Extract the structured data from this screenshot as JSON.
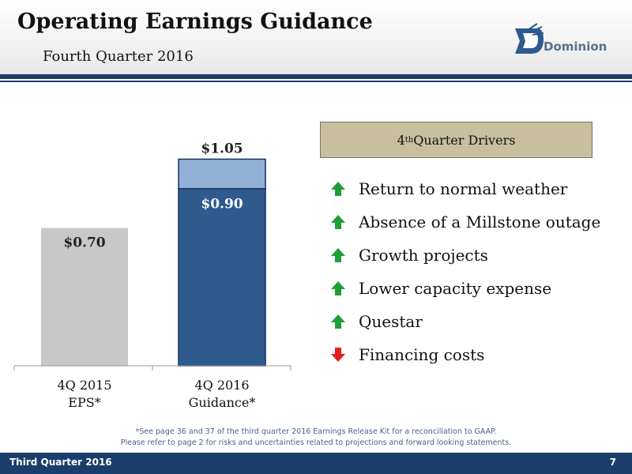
{
  "header": {
    "title": "Operating Earnings Guidance",
    "subtitle": "Fourth Quarter 2016",
    "logo_text": "Dominion"
  },
  "colors": {
    "navy": "#1b3d6b",
    "bar_gray": "#c8c8c8",
    "bar_blue": "#2f5a8e",
    "bar_light_blue": "#92b0d8",
    "box_tan": "#c7bf9f",
    "arrow_up": "#1e9e3a",
    "arrow_down": "#e02020"
  },
  "chart_data": {
    "type": "bar",
    "categories": [
      [
        "4Q 2015",
        "EPS*"
      ],
      [
        "4Q 2016",
        "Guidance*"
      ]
    ],
    "series": [
      {
        "values": [
          0.7,
          0.9
        ]
      },
      {
        "values": [
          0,
          0.15
        ]
      }
    ],
    "data_labels": [
      "$0.70",
      "$0.90",
      "$1.05"
    ],
    "ylim": [
      0,
      1.1
    ],
    "grid": false
  },
  "drivers": {
    "heading_prefix": "4",
    "heading_sup": "th",
    "heading_rest": " Quarter Drivers",
    "items": [
      {
        "label": "Return to normal weather",
        "direction": "up"
      },
      {
        "label": "Absence of a Millstone outage",
        "direction": "up"
      },
      {
        "label": "Growth projects",
        "direction": "up"
      },
      {
        "label": "Lower capacity expense",
        "direction": "up"
      },
      {
        "label": "Questar",
        "direction": "up"
      },
      {
        "label": "Financing costs",
        "direction": "down"
      }
    ]
  },
  "footnote": {
    "line1": "*See page 36 and 37 of the third quarter 2016 Earnings Release Kit for a reconciliation to GAAP.",
    "line2": "Please refer to page 2 for risks and uncertainties related to projections and forward looking statements."
  },
  "footer": {
    "left": "Third Quarter 2016",
    "page_number": "7"
  }
}
